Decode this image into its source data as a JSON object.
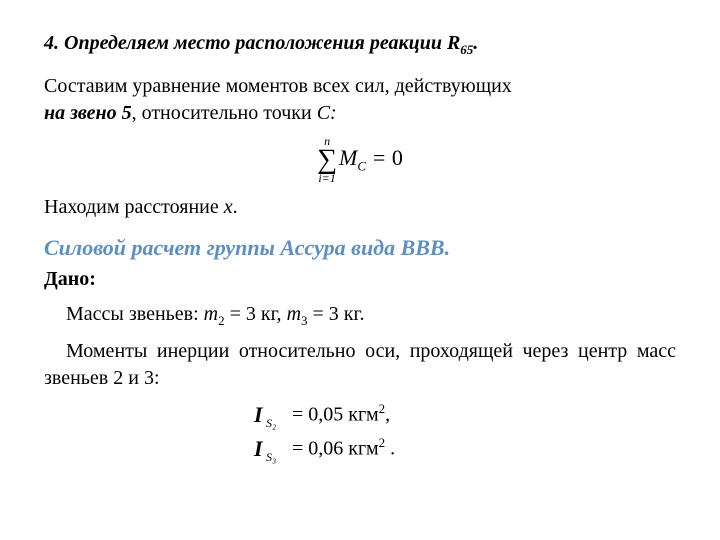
{
  "heading": {
    "prefix": "4. Определяем место расположения реакции R",
    "sub": "65",
    "suffix": "."
  },
  "para1": {
    "line1": "Составим уравнение моментов всех сил, действующих",
    "emph": "на звено 5",
    "tail": ", относительно точки ",
    "point": "С:"
  },
  "equation": {
    "upper": "n",
    "lower": "i=1",
    "sigma": "∑",
    "M": "M",
    "Msub": "C",
    "eq": " = ",
    "zero": "0"
  },
  "para2": {
    "pre": "Находим расстояние ",
    "x": "x",
    "post": "."
  },
  "subtitle": "Силовой расчет группы Ассура вида ВВВ.",
  "given": "Дано:",
  "masses": {
    "pre": "Массы звеньев: ",
    "m1sym": "m",
    "m1sub": "2",
    "m1tail": " = 3 кг,  ",
    "m2sym": "m",
    "m2sub": "3",
    "m2tail": " = 3 кг."
  },
  "inertia_intro": "Моменты инерции относительно оси, проходящей через центр масс звеньев 2 и 3:",
  "inertia1": {
    "I": "I",
    "sub": "S₂",
    "eq": "=  ",
    "val": "0,05 кгм",
    "sup": "2",
    "tail": ","
  },
  "inertia2": {
    "I": "I",
    "sub": "S₃",
    "eq": "=  ",
    "val": "0,06 кгм",
    "sup": "2",
    "tail": " ."
  },
  "colors": {
    "text": "#000000",
    "subtitle": "#5b8fc7",
    "background": "#ffffff"
  }
}
